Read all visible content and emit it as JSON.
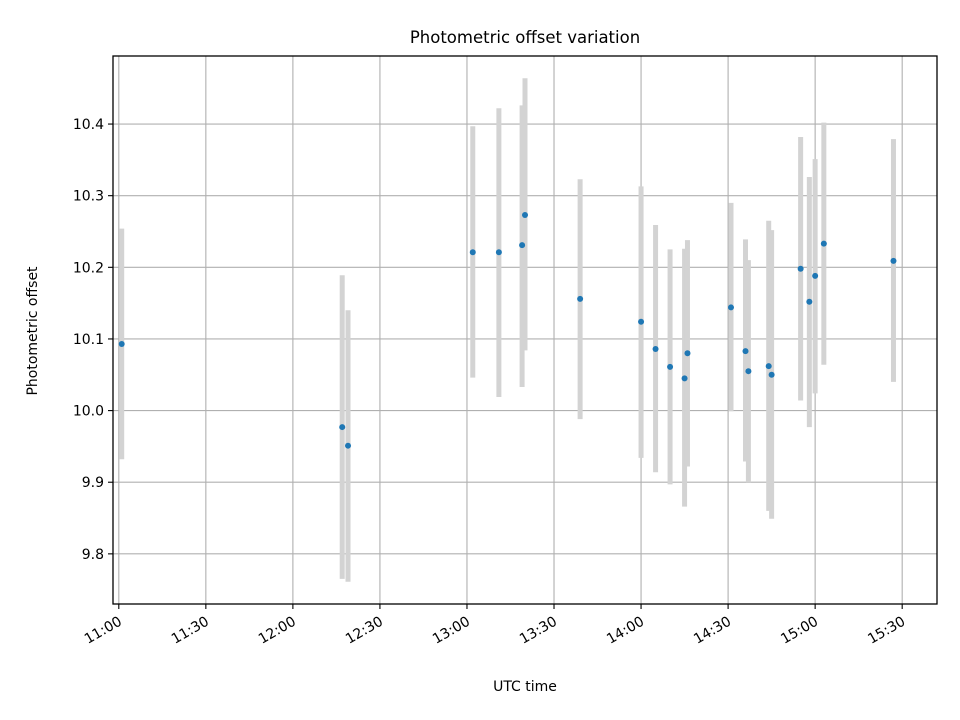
{
  "chart_data": {
    "type": "scatter",
    "title": "Photometric offset variation",
    "xlabel": "UTC time",
    "ylabel": "Photometric offset",
    "x_axis": "time",
    "xlim": [
      "10:58",
      "15:42"
    ],
    "ylim": [
      9.73,
      10.495
    ],
    "xticks": [
      "11:00",
      "11:30",
      "12:00",
      "12:30",
      "13:00",
      "13:30",
      "14:00",
      "14:30",
      "15:00",
      "15:30"
    ],
    "yticks": [
      9.8,
      9.9,
      10.0,
      10.1,
      10.2,
      10.3,
      10.4
    ],
    "ytick_labels": [
      "9.8",
      "9.9",
      "10.0",
      "10.1",
      "10.2",
      "10.3",
      "10.4"
    ],
    "grid": true,
    "colors": {
      "marker": "#1f77b4",
      "errorbar": "#d3d3d3",
      "grid": "#b0b0b0"
    },
    "series": [
      {
        "points": [
          {
            "time": "11:01",
            "y": 10.093,
            "ylow": 9.932,
            "yhigh": 10.254
          },
          {
            "time": "12:17",
            "y": 9.977,
            "ylow": 9.765,
            "yhigh": 10.189
          },
          {
            "time": "12:19",
            "y": 9.951,
            "ylow": 9.761,
            "yhigh": 10.14
          },
          {
            "time": "13:02",
            "y": 10.221,
            "ylow": 10.046,
            "yhigh": 10.397
          },
          {
            "time": "13:11",
            "y": 10.221,
            "ylow": 10.019,
            "yhigh": 10.422
          },
          {
            "time": "13:19",
            "y": 10.231,
            "ylow": 10.033,
            "yhigh": 10.426
          },
          {
            "time": "13:20",
            "y": 10.273,
            "ylow": 10.084,
            "yhigh": 10.464
          },
          {
            "time": "13:39",
            "y": 10.156,
            "ylow": 9.988,
            "yhigh": 10.323
          },
          {
            "time": "14:00",
            "y": 10.124,
            "ylow": 9.934,
            "yhigh": 10.313
          },
          {
            "time": "14:05",
            "y": 10.086,
            "ylow": 9.914,
            "yhigh": 10.259
          },
          {
            "time": "14:10",
            "y": 10.061,
            "ylow": 9.897,
            "yhigh": 10.225
          },
          {
            "time": "14:15",
            "y": 10.045,
            "ylow": 9.866,
            "yhigh": 10.226
          },
          {
            "time": "14:16",
            "y": 10.08,
            "ylow": 9.922,
            "yhigh": 10.238
          },
          {
            "time": "14:31",
            "y": 10.144,
            "ylow": 9.999,
            "yhigh": 10.29
          },
          {
            "time": "14:36",
            "y": 10.083,
            "ylow": 9.929,
            "yhigh": 10.239
          },
          {
            "time": "14:37",
            "y": 10.055,
            "ylow": 9.9,
            "yhigh": 10.21
          },
          {
            "time": "14:44",
            "y": 10.062,
            "ylow": 9.86,
            "yhigh": 10.265
          },
          {
            "time": "14:45",
            "y": 10.05,
            "ylow": 9.849,
            "yhigh": 10.252
          },
          {
            "time": "14:55",
            "y": 10.198,
            "ylow": 10.014,
            "yhigh": 10.382
          },
          {
            "time": "14:58",
            "y": 10.152,
            "ylow": 9.977,
            "yhigh": 10.326
          },
          {
            "time": "15:00",
            "y": 10.188,
            "ylow": 10.024,
            "yhigh": 10.351
          },
          {
            "time": "15:03",
            "y": 10.233,
            "ylow": 10.064,
            "yhigh": 10.402
          },
          {
            "time": "15:27",
            "y": 10.209,
            "ylow": 10.04,
            "yhigh": 10.379
          }
        ]
      }
    ]
  }
}
